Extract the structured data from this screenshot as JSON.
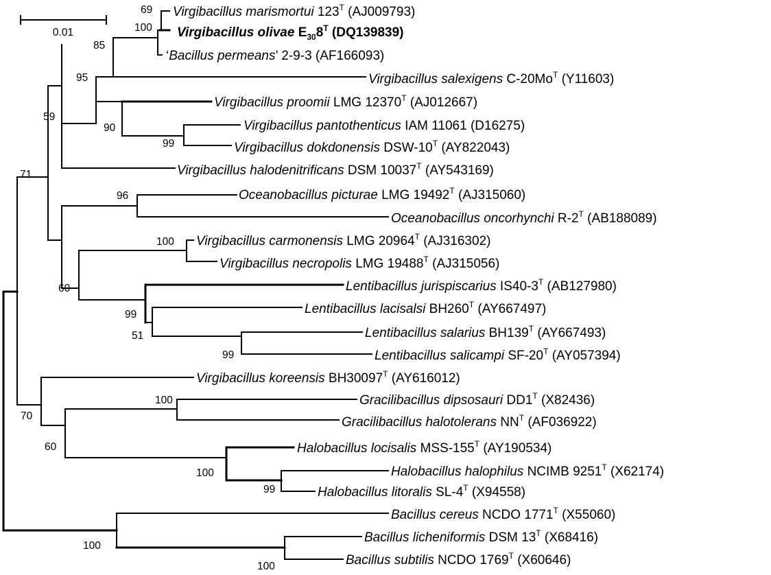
{
  "scale_bar": {
    "label": "0.01"
  },
  "taxa": [
    {
      "id": "marismortui",
      "genus": "Virgibacillus",
      "species": "marismortui",
      "strain": "123",
      "type_strain": true,
      "accession": "AJ009793",
      "bold": false
    },
    {
      "id": "olivae",
      "genus": "Virgibacillus",
      "species": "olivae",
      "strain": "E",
      "strain_sub": "30",
      "strain_suffix": "8",
      "type_strain": true,
      "accession": "DQ139839",
      "bold": true
    },
    {
      "id": "permeans",
      "quoted_name": "Bacillus permeans",
      "strain": "2-9-3",
      "type_strain": false,
      "accession": "AF166093",
      "bold": false
    },
    {
      "id": "salexigens",
      "genus": "Virgibacillus",
      "species": "salexigens",
      "strain": "C-20Mo",
      "type_strain": true,
      "accession": "Y11603",
      "bold": false
    },
    {
      "id": "proomii",
      "genus": "Virgibacillus",
      "species": "proomii",
      "strain": "LMG 12370",
      "type_strain": true,
      "accession": "AJ012667",
      "bold": false
    },
    {
      "id": "pantothenticus",
      "genus": "Virgibacillus",
      "species": "pantothenticus",
      "strain": "IAM 11061",
      "type_strain": false,
      "accession": "D16275",
      "bold": false
    },
    {
      "id": "dokdonensis",
      "genus": "Virgibacillus",
      "species": "dokdonensis",
      "strain": "DSW-10",
      "type_strain": true,
      "accession": "AY822043",
      "bold": false
    },
    {
      "id": "halodenitrificans",
      "genus": "Virgibacillus",
      "species": "halodenitrificans",
      "strain": "DSM 10037",
      "type_strain": true,
      "accession": "AY543169",
      "bold": false
    },
    {
      "id": "picturae",
      "genus": "Oceanobacillus",
      "species": "picturae",
      "strain": "LMG 19492",
      "type_strain": true,
      "accession": "AJ315060",
      "bold": false
    },
    {
      "id": "oncorhynchi",
      "genus": "Oceanobacillus",
      "species": "oncorhynchi",
      "strain": "R-2",
      "type_strain": true,
      "accession": "AB188089",
      "bold": false
    },
    {
      "id": "carmonensis",
      "genus": "Virgibacillus",
      "species": "carmonensis",
      "strain": "LMG 20964",
      "type_strain": true,
      "accession": "AJ316302",
      "bold": false
    },
    {
      "id": "necropolis",
      "genus": "Virgibacillus",
      "species": "necropolis",
      "strain": "LMG 19488",
      "type_strain": true,
      "accession": "AJ315056",
      "bold": false
    },
    {
      "id": "jurispiscarius",
      "genus": "Lentibacillus",
      "species": "jurispiscarius",
      "strain": "IS40-3",
      "type_strain": true,
      "accession": "AB127980",
      "bold": false
    },
    {
      "id": "lacisalsi",
      "genus": "Lentibacillus",
      "species": "lacisalsi",
      "strain": "BH260",
      "type_strain": true,
      "accession": "AY667497",
      "bold": false
    },
    {
      "id": "salarius",
      "genus": "Lentibacillus",
      "species": "salarius",
      "strain": "BH139",
      "type_strain": true,
      "accession": "AY667493",
      "bold": false
    },
    {
      "id": "salicampi",
      "genus": "Lentibacillus",
      "species": "salicampi",
      "strain": "SF-20",
      "type_strain": true,
      "accession": "AY057394",
      "bold": false
    },
    {
      "id": "koreensis",
      "genus": "Virgibacillus",
      "species": "koreensis",
      "strain": "BH30097",
      "type_strain": true,
      "accession": "AY616012",
      "bold": false
    },
    {
      "id": "dipsosauri",
      "genus": "Gracilibacillus",
      "species": "dipsosauri",
      "strain": "DD1",
      "type_strain": true,
      "accession": "X82436",
      "bold": false
    },
    {
      "id": "halotolerans",
      "genus": "Gracilibacillus",
      "species": "halotolerans",
      "strain": "NN",
      "type_strain": true,
      "accession": "AF036922",
      "bold": false
    },
    {
      "id": "locisalis",
      "genus": "Halobacillus",
      "species": "locisalis",
      "strain": "MSS-155",
      "type_strain": true,
      "accession": "AY190534",
      "bold": false
    },
    {
      "id": "halophilus",
      "genus": "Halobacillus",
      "species": "halophilus",
      "strain": "NCIMB 9251",
      "type_strain": true,
      "accession": "X62174",
      "bold": false
    },
    {
      "id": "litoralis",
      "genus": "Halobacillus",
      "species": "litoralis",
      "strain": "SL-4",
      "type_strain": true,
      "accession": "X94558",
      "bold": false
    },
    {
      "id": "cereus",
      "genus": "Bacillus",
      "species": "cereus",
      "strain": "NCDO 1771",
      "type_strain": true,
      "accession": "X55060",
      "bold": false
    },
    {
      "id": "licheniformis",
      "genus": "Bacillus",
      "species": "licheniformis",
      "strain": "DSM 13",
      "type_strain": true,
      "accession": "X68416",
      "bold": false
    },
    {
      "id": "subtilis",
      "genus": "Bacillus",
      "species": "subtilis",
      "strain": "NCDO 1769",
      "type_strain": true,
      "accession": "X60646",
      "bold": false
    }
  ],
  "bootstrap": {
    "marismortui_olivae": "69",
    "marismortui_olivae_permeans": "100",
    "marismortui_group_salexigens": "85",
    "virgibacillus_core": "95",
    "proomii_group": "90",
    "pantothenticus_dokdonensis": "99",
    "with_halodenitrificans": "59",
    "top_virgibacillus_oceanobacillus_lentibacillus": "71",
    "oceanobacillus": "96",
    "carmonensis_necropolis": "100",
    "carmonensis_lentibacillus": "60",
    "lentibacillus": "99",
    "lacisalsi_salarius_salicampi": "51",
    "salarius_salicampi": "99",
    "with_koreensis": "70",
    "gracilibacillus_halobacillus": "60",
    "gracilibacillus": "100",
    "halobacillus": "100",
    "halophilus_litoralis": "99",
    "bacillus": "100",
    "licheniformis_subtilis": "100"
  }
}
